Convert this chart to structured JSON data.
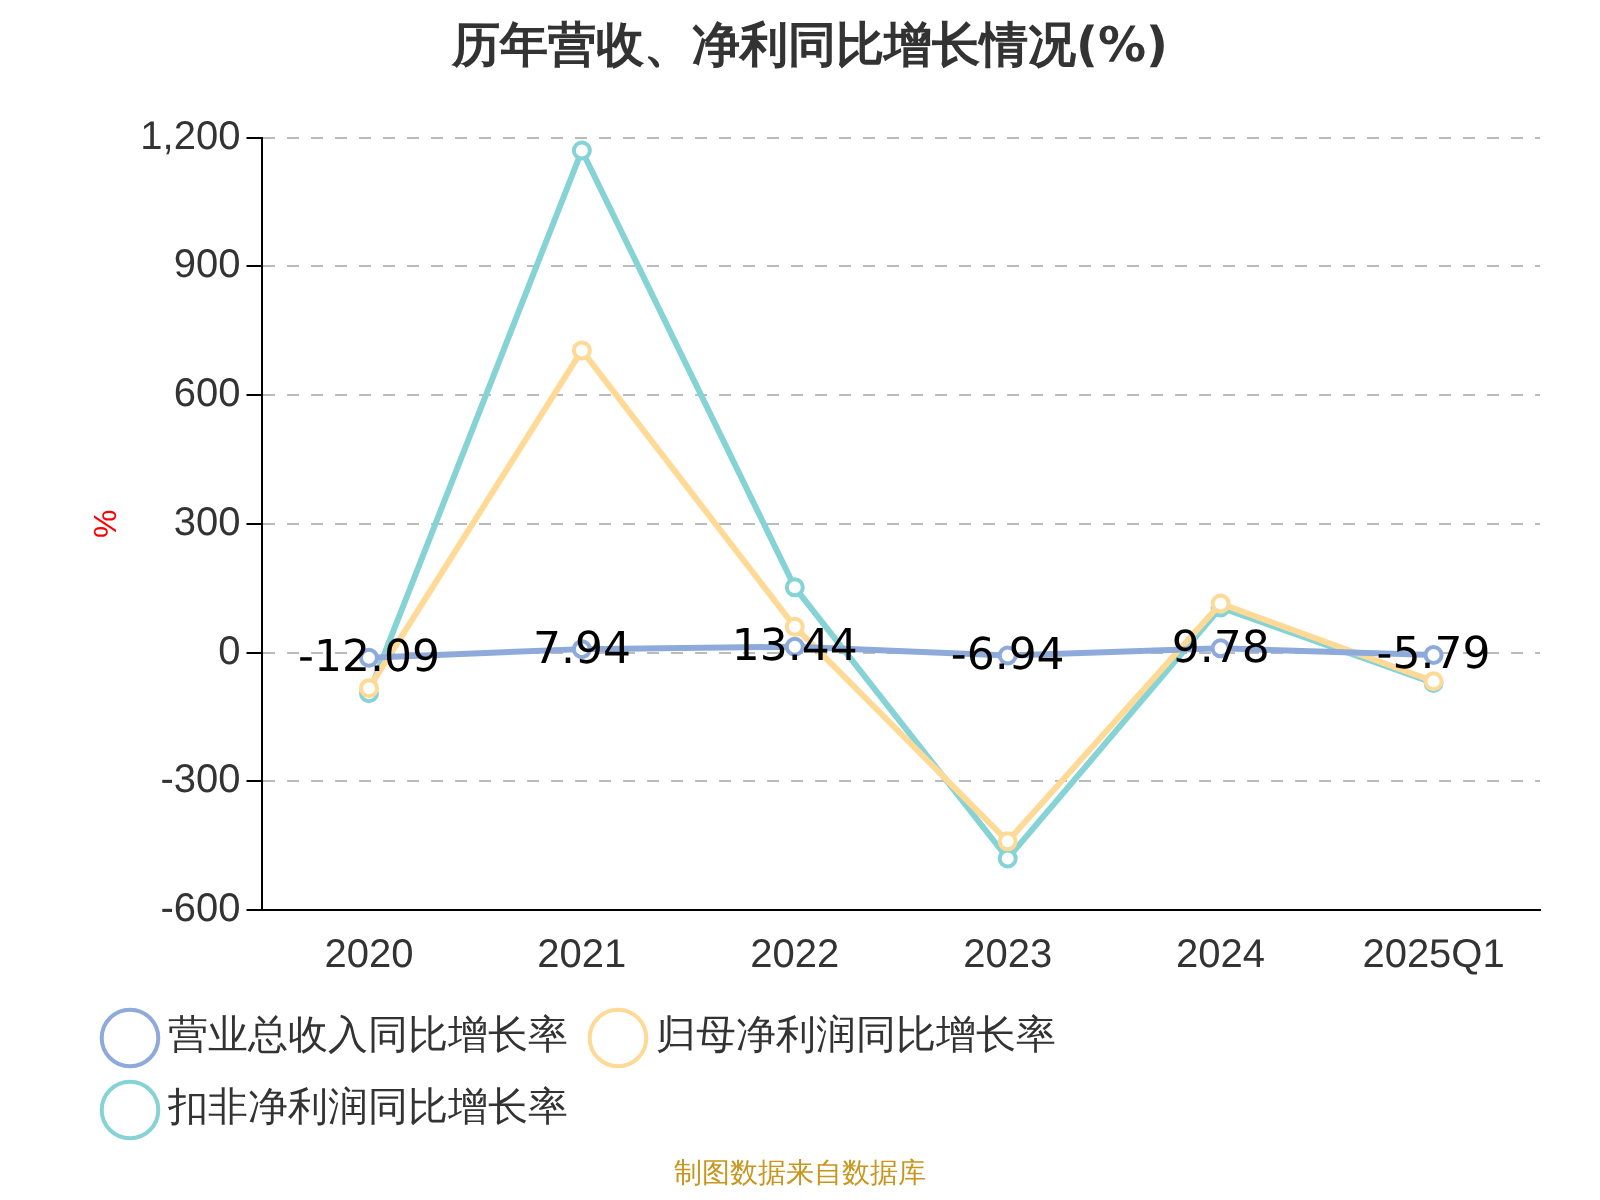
{
  "chart_data": {
    "type": "line",
    "title": "历年营收、净利同比增长情况(%)",
    "ylabel": "%",
    "categories": [
      "2020",
      "2021",
      "2022",
      "2023",
      "2024",
      "2025Q1"
    ],
    "series": [
      {
        "name": "营业总收入同比增长率",
        "color": "#8eaadb",
        "values": [
          -12.09,
          7.94,
          13.44,
          -6.94,
          9.78,
          -5.79
        ],
        "value_labels": [
          "-12.09",
          "7.94",
          "13.44",
          "-6.94",
          "9.78",
          "-5.79"
        ]
      },
      {
        "name": "归母净利润同比增长率",
        "color": "#ffd996",
        "values": [
          -83,
          704,
          60,
          -440,
          114,
          -67
        ]
      },
      {
        "name": "扣非净利润同比增长率",
        "color": "#86d3d6",
        "values": [
          -95,
          1170,
          152,
          -480,
          105,
          -71
        ]
      }
    ],
    "ylim": [
      -600,
      1200
    ],
    "yticks": [
      {
        "value": -600,
        "label": "-600"
      },
      {
        "value": -300,
        "label": "-300"
      },
      0,
      300,
      600,
      900,
      {
        "value": 1200,
        "label": "1,200"
      }
    ],
    "grid": "y",
    "legend": "bottom",
    "marker": "circle",
    "line_style": "solid",
    "annotations": [
      "制图数据来自数据库"
    ]
  }
}
